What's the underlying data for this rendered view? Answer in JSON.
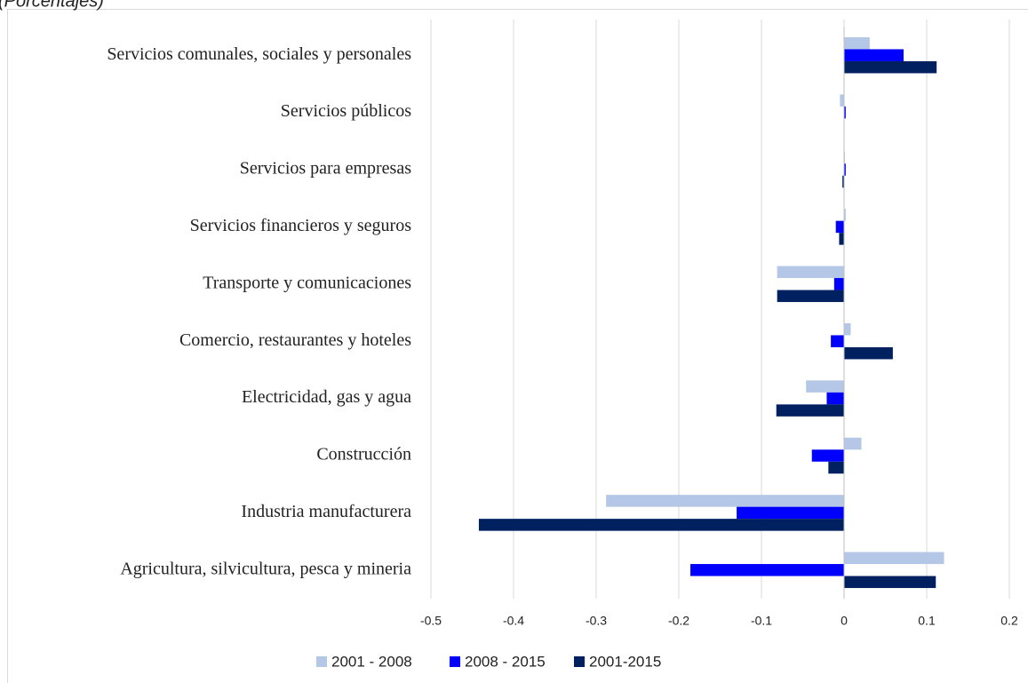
{
  "chart_data": {
    "type": "barh",
    "subtitle": "(Porcentajes)",
    "categories": [
      "Servicios comunales, sociales y personales",
      "Servicios públicos",
      "Servicios para empresas",
      "Servicios financieros y seguros",
      "Transporte y comunicaciones",
      "Comercio, restaurantes y hoteles",
      "Electricidad, gas y agua",
      "Construcción",
      "Industria manufacturera",
      "Agricultura, silvicultura, pesca y mineria"
    ],
    "series": [
      {
        "name": "2001 - 2008",
        "color": "#b4c7e7",
        "values": [
          0.031,
          -0.005,
          0.001,
          0.002,
          -0.081,
          0.008,
          -0.046,
          0.021,
          -0.288,
          0.121
        ]
      },
      {
        "name": "2008 - 2015",
        "color": "#0000ff",
        "values": [
          0.072,
          0.002,
          0.002,
          -0.01,
          -0.012,
          -0.016,
          -0.021,
          -0.039,
          -0.13,
          -0.186
        ]
      },
      {
        "name": "2001-2015",
        "color": "#002060",
        "values": [
          0.112,
          0,
          -0.002,
          -0.006,
          -0.081,
          0.059,
          -0.082,
          -0.019,
          -0.442,
          0.111
        ]
      }
    ],
    "xlim": [
      -0.5,
      0.2
    ],
    "xticks": [
      -0.5,
      -0.4,
      -0.3,
      -0.2,
      -0.1,
      0,
      0.1,
      0.2
    ],
    "grid": true,
    "legend": "bottom"
  }
}
